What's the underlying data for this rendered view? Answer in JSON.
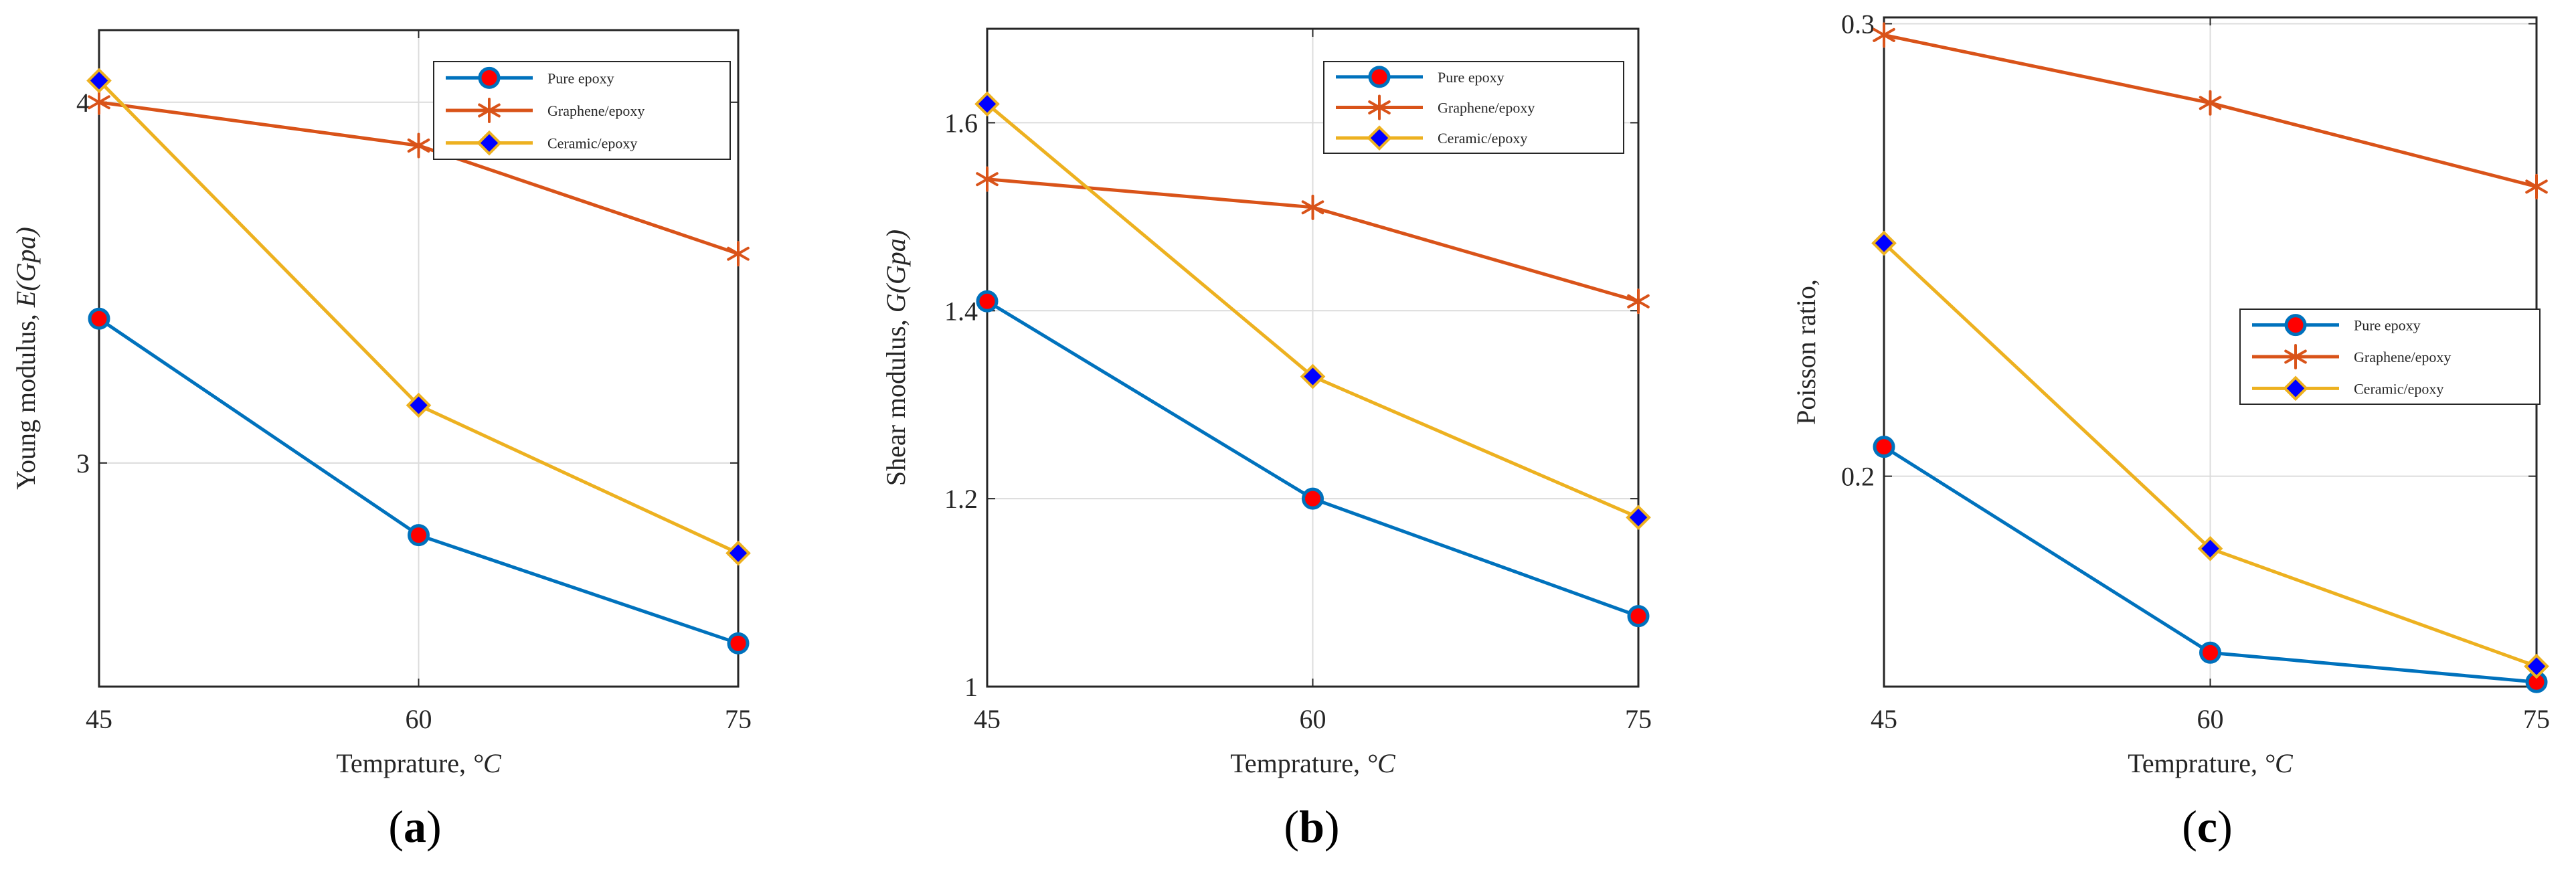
{
  "chart_data": [
    {
      "type": "line",
      "panel_label": {
        "open": "(",
        "letter": "a",
        "close": ")"
      },
      "xlabel": {
        "text": "Temprature, ",
        "unit": "°C"
      },
      "ylabel": {
        "text": "Young modulus, ",
        "unit": "E(Gpa)"
      },
      "x": [
        45,
        60,
        75
      ],
      "x_ticks": [
        "45",
        "60",
        "75"
      ],
      "xlim": [
        45,
        75
      ],
      "y_ticks": [
        3,
        4
      ],
      "y_tick_labels": [
        "3",
        "4"
      ],
      "ylim": [
        2.38,
        4.2
      ],
      "grid": true,
      "legend_position": "top-right",
      "series": [
        {
          "name": "Pure epoxy",
          "values": [
            3.4,
            2.8,
            2.5
          ],
          "color": "#0072BD",
          "marker": "circle",
          "marker_fill": "#FF0000"
        },
        {
          "name": "Graphene/epoxy",
          "values": [
            4.0,
            3.88,
            3.58
          ],
          "color": "#D95319",
          "marker": "asterisk",
          "marker_fill": "#D95319"
        },
        {
          "name": "Ceramic/epoxy",
          "values": [
            4.06,
            3.16,
            2.75
          ],
          "color": "#EDB120",
          "marker": "diamond",
          "marker_fill": "#0000FF"
        }
      ]
    },
    {
      "type": "line",
      "panel_label": {
        "open": "(",
        "letter": "b",
        "close": ")"
      },
      "xlabel": {
        "text": "Temprature, ",
        "unit": "°C"
      },
      "ylabel": {
        "text": "Shear modulus, ",
        "unit": "G(Gpa)"
      },
      "x": [
        45,
        60,
        75
      ],
      "x_ticks": [
        "45",
        "60",
        "75"
      ],
      "xlim": [
        45,
        75
      ],
      "y_ticks": [
        1.0,
        1.2,
        1.4,
        1.6
      ],
      "y_tick_labels": [
        "1",
        "1.2",
        "1.4",
        "1.6"
      ],
      "ylim": [
        1.0,
        1.7
      ],
      "grid": true,
      "legend_position": "top-right",
      "series": [
        {
          "name": "Pure epoxy",
          "values": [
            1.41,
            1.2,
            1.075
          ],
          "color": "#0072BD",
          "marker": "circle",
          "marker_fill": "#FF0000"
        },
        {
          "name": "Graphene/epoxy",
          "values": [
            1.54,
            1.51,
            1.41
          ],
          "color": "#D95319",
          "marker": "asterisk",
          "marker_fill": "#D95319"
        },
        {
          "name": "Ceramic/epoxy",
          "values": [
            1.62,
            1.33,
            1.18
          ],
          "color": "#EDB120",
          "marker": "diamond",
          "marker_fill": "#0000FF"
        }
      ]
    },
    {
      "type": "line",
      "panel_label": {
        "open": "(",
        "letter": "c",
        "close": ")"
      },
      "xlabel": {
        "text": "Temprature, ",
        "unit": "°C"
      },
      "ylabel": {
        "text": "Poisson ratio,",
        "unit": ""
      },
      "x": [
        45,
        60,
        75
      ],
      "x_ticks": [
        "45",
        "60",
        "75"
      ],
      "xlim": [
        45,
        75
      ],
      "y_ticks": [
        0.2,
        0.3
      ],
      "y_tick_labels": [
        "0.2",
        "0.3"
      ],
      "ylim": [
        0.1535,
        0.3014
      ],
      "grid": true,
      "legend_position": "middle-right",
      "series": [
        {
          "name": "Pure epoxy",
          "values": [
            0.2065,
            0.161,
            0.1545
          ],
          "color": "#0072BD",
          "marker": "circle",
          "marker_fill": "#FF0000"
        },
        {
          "name": "Graphene/epoxy",
          "values": [
            0.2975,
            0.2825,
            0.264
          ],
          "color": "#D95319",
          "marker": "asterisk",
          "marker_fill": "#D95319"
        },
        {
          "name": "Ceramic/epoxy",
          "values": [
            0.2515,
            0.184,
            0.158
          ],
          "color": "#EDB120",
          "marker": "diamond",
          "marker_fill": "#0000FF"
        }
      ]
    }
  ]
}
